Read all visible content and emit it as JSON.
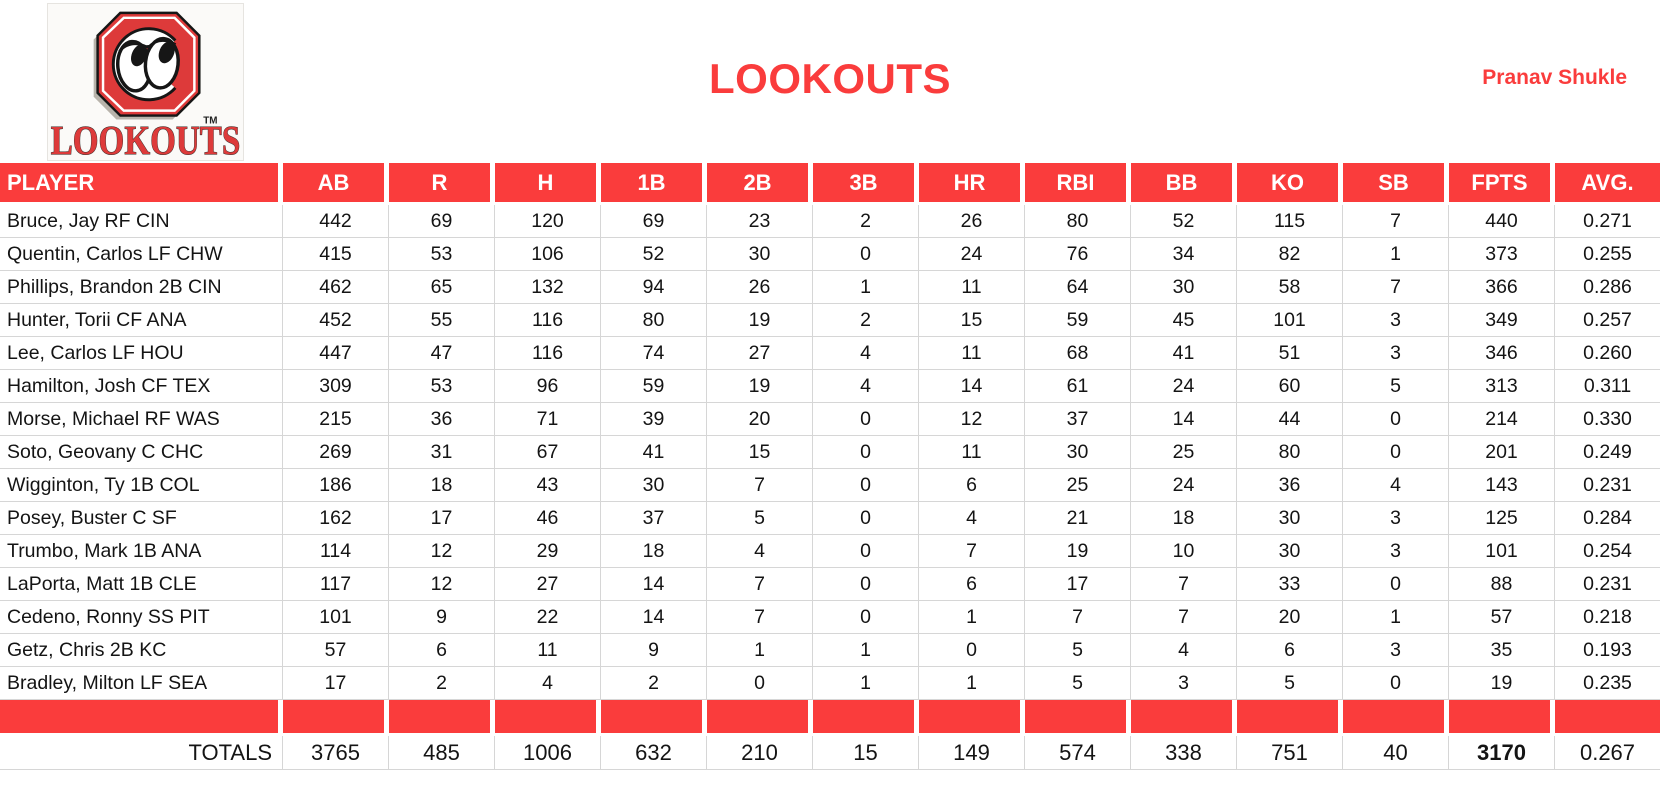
{
  "header": {
    "title": "LOOKOUTS",
    "author": "Pranav Shukle"
  },
  "logo": {
    "wordmark": "LOOKOUTS",
    "trademark": "TM"
  },
  "colors": {
    "accent_red": "#fa3c3c",
    "logo_red": "#dd3a3a",
    "grid_line": "#d6d6d6",
    "header_text": "#ffffff"
  },
  "table": {
    "columns": [
      "PLAYER",
      "AB",
      "R",
      "H",
      "1B",
      "2B",
      "3B",
      "HR",
      "RBI",
      "BB",
      "KO",
      "SB",
      "FPTS",
      "AVG."
    ],
    "players": [
      {
        "name": "Bruce, Jay RF CIN",
        "stats": [
          "442",
          "69",
          "120",
          "69",
          "23",
          "2",
          "26",
          "80",
          "52",
          "115",
          "7",
          "440",
          "0.271"
        ]
      },
      {
        "name": "Quentin, Carlos LF CHW",
        "stats": [
          "415",
          "53",
          "106",
          "52",
          "30",
          "0",
          "24",
          "76",
          "34",
          "82",
          "1",
          "373",
          "0.255"
        ]
      },
      {
        "name": "Phillips, Brandon 2B CIN",
        "stats": [
          "462",
          "65",
          "132",
          "94",
          "26",
          "1",
          "11",
          "64",
          "30",
          "58",
          "7",
          "366",
          "0.286"
        ]
      },
      {
        "name": "Hunter, Torii CF ANA",
        "stats": [
          "452",
          "55",
          "116",
          "80",
          "19",
          "2",
          "15",
          "59",
          "45",
          "101",
          "3",
          "349",
          "0.257"
        ]
      },
      {
        "name": "Lee, Carlos LF HOU",
        "stats": [
          "447",
          "47",
          "116",
          "74",
          "27",
          "4",
          "11",
          "68",
          "41",
          "51",
          "3",
          "346",
          "0.260"
        ]
      },
      {
        "name": "Hamilton, Josh CF TEX",
        "stats": [
          "309",
          "53",
          "96",
          "59",
          "19",
          "4",
          "14",
          "61",
          "24",
          "60",
          "5",
          "313",
          "0.311"
        ]
      },
      {
        "name": "Morse, Michael RF WAS",
        "stats": [
          "215",
          "36",
          "71",
          "39",
          "20",
          "0",
          "12",
          "37",
          "14",
          "44",
          "0",
          "214",
          "0.330"
        ]
      },
      {
        "name": "Soto, Geovany C CHC",
        "stats": [
          "269",
          "31",
          "67",
          "41",
          "15",
          "0",
          "11",
          "30",
          "25",
          "80",
          "0",
          "201",
          "0.249"
        ]
      },
      {
        "name": "Wigginton, Ty 1B COL",
        "stats": [
          "186",
          "18",
          "43",
          "30",
          "7",
          "0",
          "6",
          "25",
          "24",
          "36",
          "4",
          "143",
          "0.231"
        ]
      },
      {
        "name": "Posey, Buster C SF",
        "stats": [
          "162",
          "17",
          "46",
          "37",
          "5",
          "0",
          "4",
          "21",
          "18",
          "30",
          "3",
          "125",
          "0.284"
        ]
      },
      {
        "name": "Trumbo, Mark 1B ANA",
        "stats": [
          "114",
          "12",
          "29",
          "18",
          "4",
          "0",
          "7",
          "19",
          "10",
          "30",
          "3",
          "101",
          "0.254"
        ]
      },
      {
        "name": "LaPorta, Matt 1B CLE",
        "stats": [
          "117",
          "12",
          "27",
          "14",
          "7",
          "0",
          "6",
          "17",
          "7",
          "33",
          "0",
          "88",
          "0.231"
        ]
      },
      {
        "name": "Cedeno, Ronny SS PIT",
        "stats": [
          "101",
          "9",
          "22",
          "14",
          "7",
          "0",
          "1",
          "7",
          "7",
          "20",
          "1",
          "57",
          "0.218"
        ]
      },
      {
        "name": "Getz, Chris 2B KC",
        "stats": [
          "57",
          "6",
          "11",
          "9",
          "1",
          "1",
          "0",
          "5",
          "4",
          "6",
          "3",
          "35",
          "0.193"
        ]
      },
      {
        "name": "Bradley, Milton LF SEA",
        "stats": [
          "17",
          "2",
          "4",
          "2",
          "0",
          "1",
          "1",
          "5",
          "3",
          "5",
          "0",
          "19",
          "0.235"
        ]
      }
    ],
    "totals_label": "TOTALS",
    "totals": [
      "3765",
      "485",
      "1006",
      "632",
      "210",
      "15",
      "149",
      "574",
      "338",
      "751",
      "40",
      "3170",
      "0.267"
    ],
    "bold_total_column": "FPTS"
  }
}
